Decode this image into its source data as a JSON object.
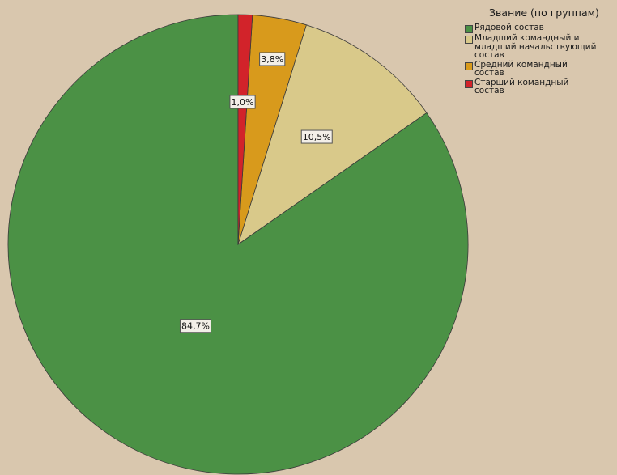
{
  "chart_data": {
    "type": "pie",
    "start_angle_deg": 0,
    "direction": "clockwise",
    "legend": {
      "title": "Звание (по группам)",
      "position": "top-right"
    },
    "slices": [
      {
        "label": "Рядовой состав",
        "legend_text": "Рядовой состав",
        "value": 84.7,
        "value_label": "84,7%",
        "color": "#4b9145"
      },
      {
        "label": "Младший командный и младший начальствующий состав",
        "legend_text": "Младший командный и\nмладший начальствующий\nсостав",
        "value": 10.5,
        "value_label": "10,5%",
        "color": "#d9c98a"
      },
      {
        "label": "Средний командный состав",
        "legend_text": "Средний командный\nсостав",
        "value": 3.8,
        "value_label": "3,8%",
        "color": "#d89a1c"
      },
      {
        "label": "Старший командный состав",
        "legend_text": "Старший командный\nсостав",
        "value": 1.0,
        "value_label": "1,0%",
        "color": "#d2232a"
      }
    ]
  }
}
